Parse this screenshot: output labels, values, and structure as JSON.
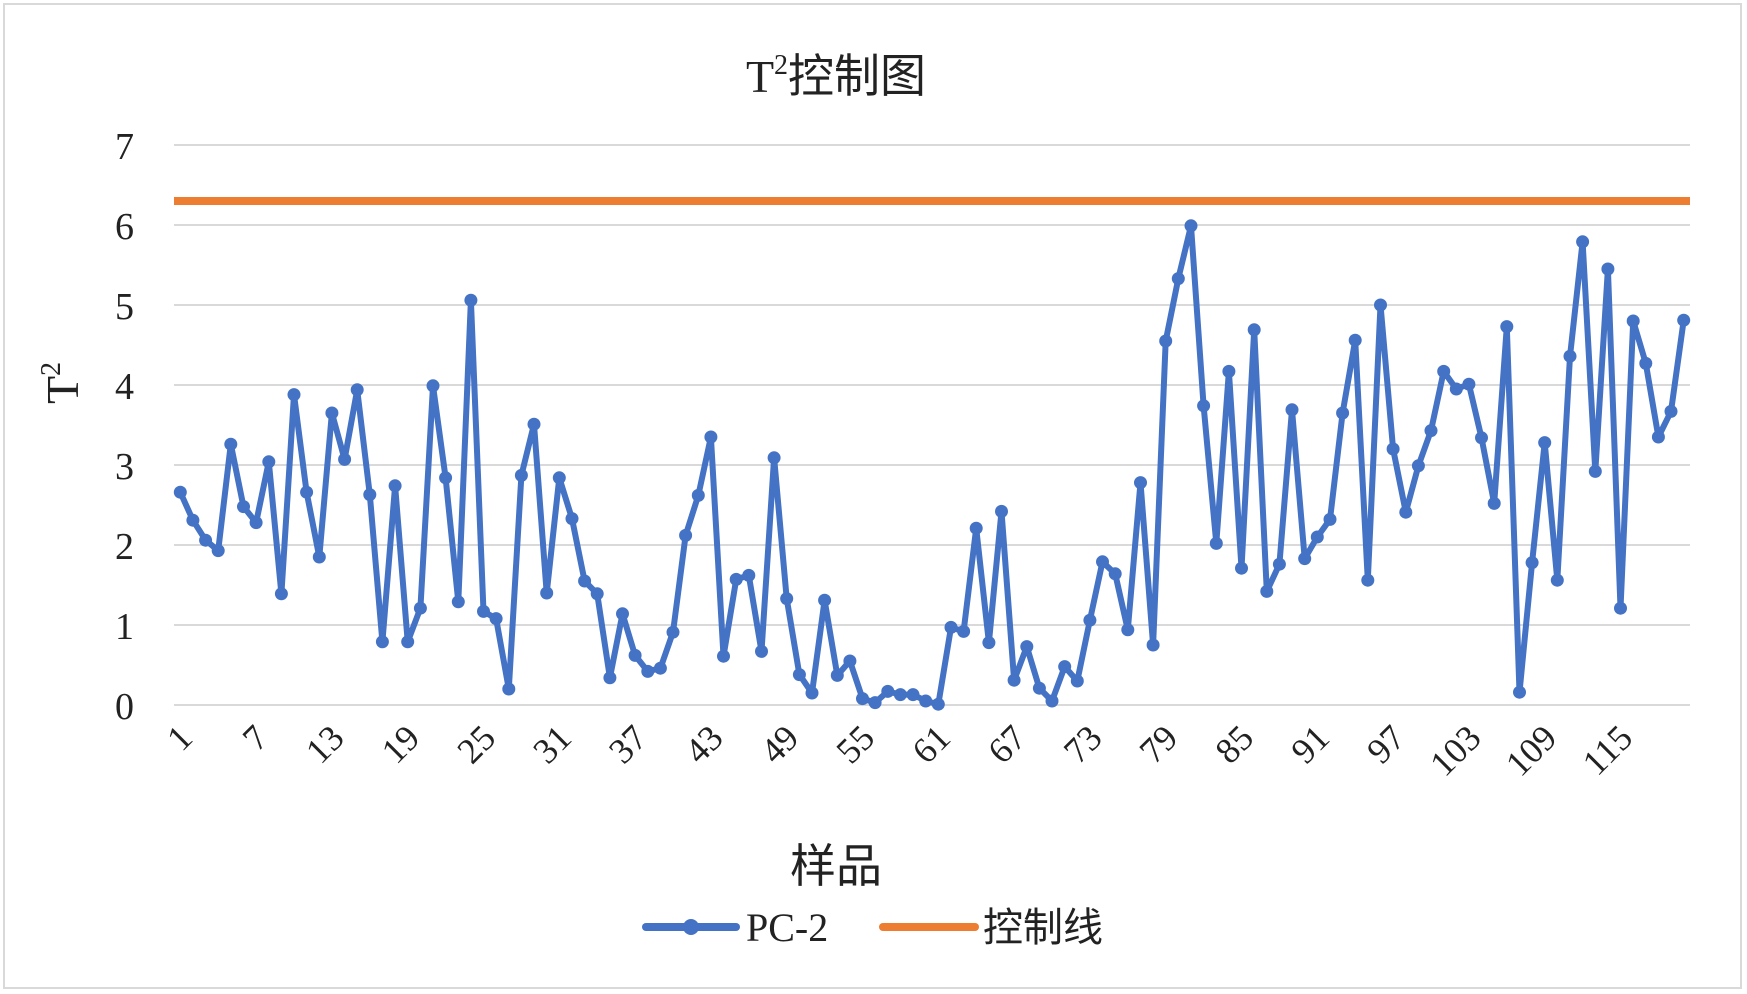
{
  "chart_data": {
    "type": "line",
    "title": "T²控制图",
    "title_parts": {
      "base": "T",
      "sup": "2",
      "rest": "控制图"
    },
    "xlabel": "样品",
    "ylabel": "T²",
    "ylabel_parts": {
      "base": "T",
      "sup": "2"
    },
    "ylim": [
      0,
      7
    ],
    "yticks": [
      "0",
      "1",
      "2",
      "3",
      "4",
      "5",
      "6",
      "7"
    ],
    "xlim": [
      1,
      120
    ],
    "xtick_labels": [
      "1",
      "7",
      "13",
      "19",
      "25",
      "31",
      "37",
      "43",
      "49",
      "55",
      "61",
      "67",
      "73",
      "79",
      "85",
      "91",
      "97",
      "103",
      "109",
      "115"
    ],
    "grid": true,
    "legend_position": "bottom",
    "series": [
      {
        "name": "PC-2",
        "color": "#4472c4",
        "marker": "circle",
        "values": [
          2.66,
          2.31,
          2.06,
          1.93,
          3.26,
          2.48,
          2.28,
          3.04,
          1.39,
          3.88,
          2.66,
          1.85,
          3.65,
          3.07,
          3.94,
          2.63,
          0.79,
          2.74,
          0.79,
          1.21,
          3.99,
          2.84,
          1.29,
          5.06,
          1.17,
          1.08,
          0.2,
          2.87,
          3.51,
          1.4,
          2.84,
          2.33,
          1.55,
          1.39,
          0.34,
          1.14,
          0.62,
          0.42,
          0.46,
          0.91,
          2.12,
          2.62,
          3.35,
          0.61,
          1.57,
          1.62,
          0.67,
          3.09,
          1.33,
          0.38,
          0.15,
          1.31,
          0.37,
          0.55,
          0.08,
          0.03,
          0.17,
          0.13,
          0.13,
          0.05,
          0.01,
          0.97,
          0.92,
          2.21,
          0.78,
          2.42,
          0.31,
          0.73,
          0.21,
          0.05,
          0.48,
          0.3,
          1.06,
          1.79,
          1.64,
          0.94,
          2.78,
          0.75,
          4.55,
          5.33,
          5.99,
          3.74,
          2.02,
          4.17,
          1.71,
          4.69,
          1.42,
          1.76,
          3.69,
          1.83,
          2.1,
          2.32,
          3.65,
          4.56,
          1.56,
          5.0,
          3.2,
          2.41,
          2.99,
          3.43,
          4.17,
          3.95,
          4.01,
          3.34,
          2.52,
          4.73,
          0.16,
          1.78,
          3.28,
          1.56,
          4.36,
          5.79,
          2.92,
          5.45,
          1.21,
          4.8,
          4.27,
          3.35,
          3.67,
          4.81
        ]
      },
      {
        "name": "控制线",
        "color": "#ed7d31",
        "marker": "none",
        "values": [
          6.3
        ]
      }
    ]
  }
}
